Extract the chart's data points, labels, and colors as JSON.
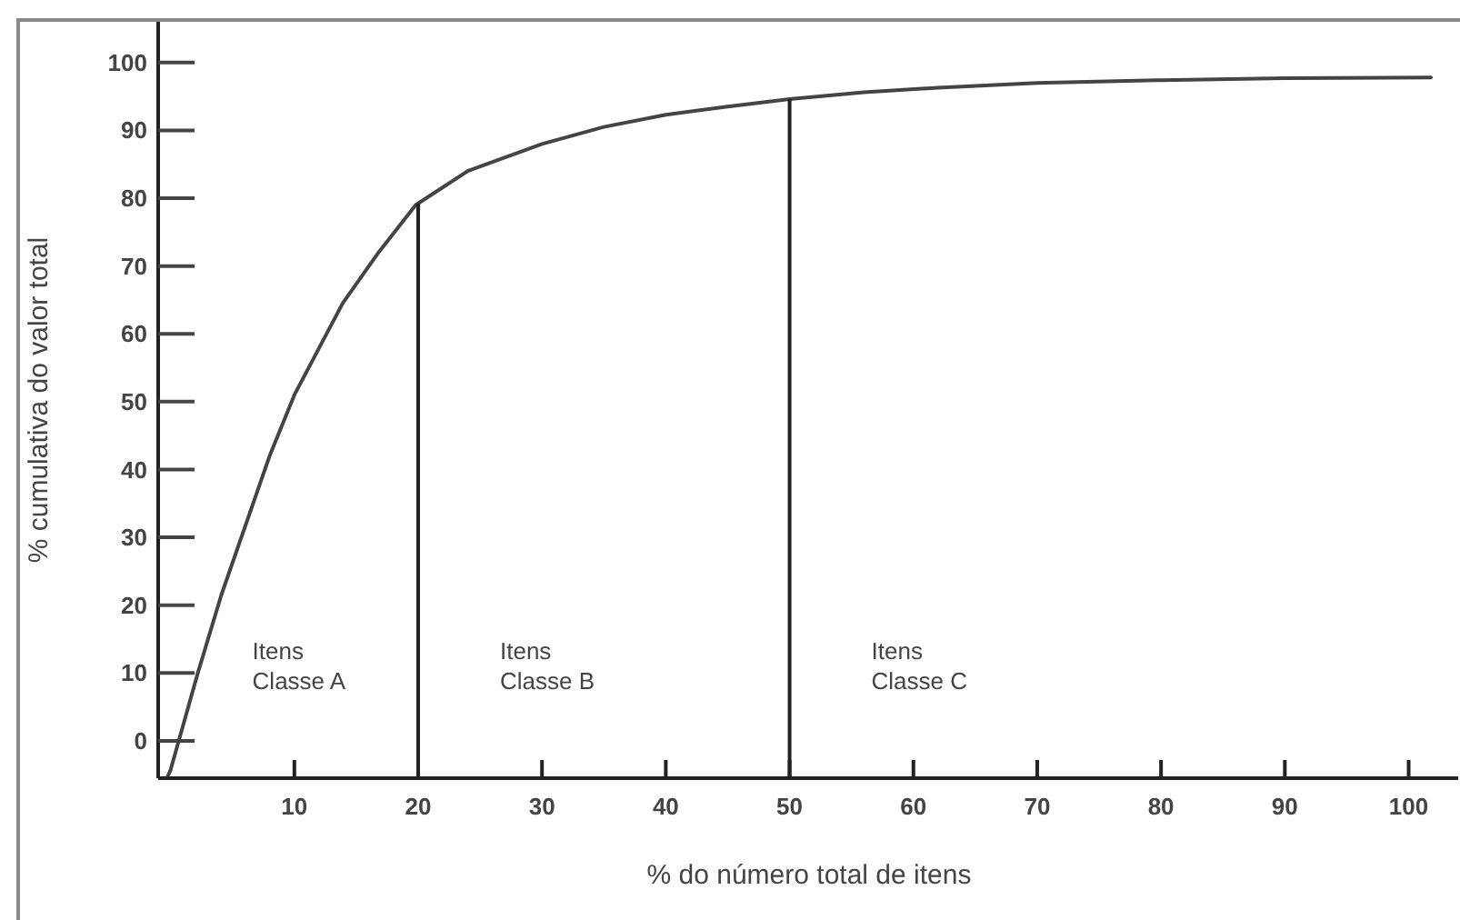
{
  "chart_data": {
    "type": "line",
    "xlabel": "% do número total de itens",
    "ylabel": "% cumulativa do valor total",
    "xlim": [
      -1,
      104
    ],
    "ylim": [
      -5.5,
      106
    ],
    "xticks": [
      10,
      20,
      30,
      40,
      50,
      60,
      70,
      80,
      90,
      100
    ],
    "yticks": [
      0,
      10,
      20,
      30,
      40,
      50,
      60,
      70,
      80,
      90,
      100
    ],
    "marker": "none",
    "line_style": "solid",
    "series": [
      {
        "color": "#444444",
        "x": [
          -0.3,
          0,
          2.2,
          4.1,
          8,
          10,
          13.9,
          16.8,
          19.8,
          24,
          30,
          35,
          40,
          45,
          50,
          56,
          62,
          70,
          80,
          90,
          101.8
        ],
        "values": [
          -5.5,
          -4.3,
          10,
          21.5,
          42,
          51,
          64.5,
          72,
          79,
          84,
          88,
          90.5,
          92.3,
          93.5,
          94.6,
          95.6,
          96.3,
          97,
          97.4,
          97.7,
          97.8
        ]
      }
    ],
    "ref_lines": [
      {
        "axis": "x",
        "value": 20,
        "color": "#222222"
      },
      {
        "axis": "x",
        "value": 50,
        "color": "#222222"
      }
    ],
    "annotations": [
      "Itens Classe A",
      "Itens Classe B",
      "Itens Classe C"
    ]
  }
}
